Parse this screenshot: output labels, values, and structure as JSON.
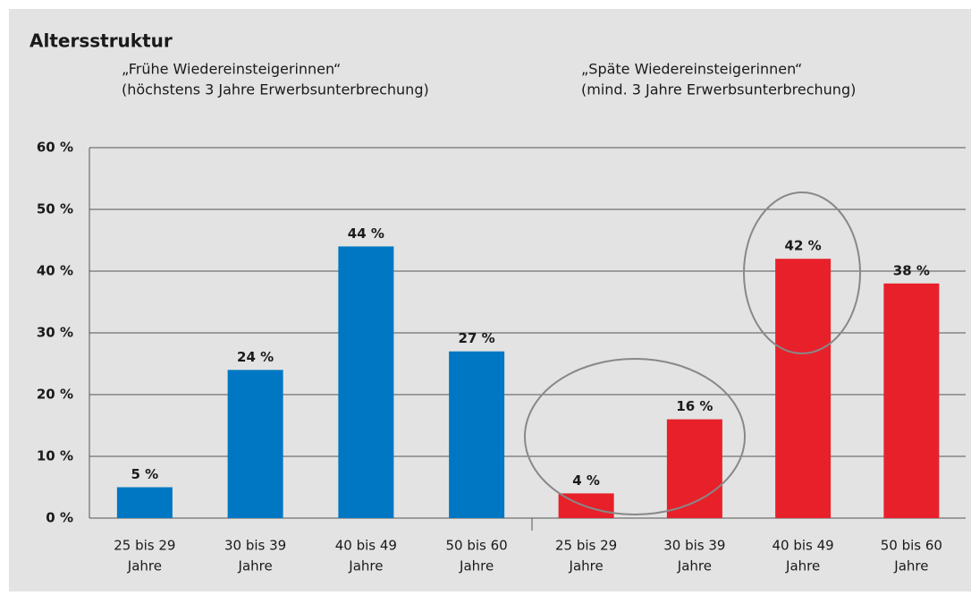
{
  "chart_data": {
    "type": "bar",
    "title": "Altersstruktur",
    "ylim": [
      0,
      60
    ],
    "yticks": [
      {
        "value": 0,
        "label": "0 %"
      },
      {
        "value": 10,
        "label": "10 %"
      },
      {
        "value": 20,
        "label": "20 %"
      },
      {
        "value": 30,
        "label": "30 %"
      },
      {
        "value": 40,
        "label": "40 %"
      },
      {
        "value": 50,
        "label": "50 %"
      },
      {
        "value": 60,
        "label": "60 %"
      }
    ],
    "grid": true,
    "groups": [
      {
        "name": "„Frühe Wiedereinsteigerinnen“",
        "note": "(höchstens 3 Jahre Erwerbsunterbrechung)",
        "color": "#0077c2",
        "categories": [
          [
            "25 bis 29",
            "Jahre"
          ],
          [
            "30 bis 39",
            "Jahre"
          ],
          [
            "40 bis 49",
            "Jahre"
          ],
          [
            "50 bis 60",
            "Jahre"
          ]
        ],
        "values": [
          5,
          24,
          44,
          27
        ],
        "value_labels": [
          "5 %",
          "24 %",
          "44 %",
          "27 %"
        ]
      },
      {
        "name": "„Späte Wiedereinsteigerinnen“",
        "note": "(mind. 3 Jahre Erwerbsunterbrechung)",
        "color": "#e8202a",
        "categories": [
          [
            "25 bis 29",
            "Jahre"
          ],
          [
            "30 bis 39",
            "Jahre"
          ],
          [
            "40 bis 49",
            "Jahre"
          ],
          [
            "50 bis 60",
            "Jahre"
          ]
        ],
        "values": [
          4,
          16,
          42,
          38
        ],
        "value_labels": [
          "4 %",
          "16 %",
          "42 %",
          "38 %"
        ]
      }
    ]
  }
}
